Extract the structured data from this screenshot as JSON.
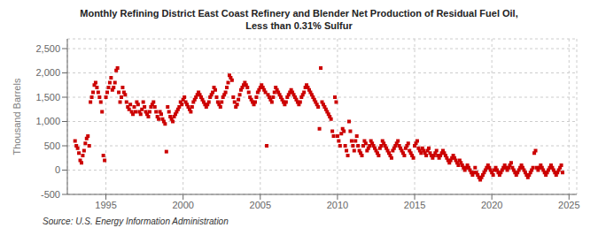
{
  "chart_data": {
    "type": "scatter",
    "title": "Monthly Refining District East Coast Refinery and Blender Net Production of Residual Fuel Oil,\nLess than 0.31% Sulfur",
    "ylabel": "Thousand Barrels",
    "annotations": [
      "Source: U.S. Energy Information Administration"
    ],
    "color": "#CC0000",
    "marker": "square",
    "grid": true,
    "xlim": [
      1992.5,
      2025.5
    ],
    "xticks": [
      1995,
      2000,
      2005,
      2010,
      2015,
      2020,
      2025
    ],
    "ylim": [
      -500,
      2700
    ],
    "yticks": [
      -500,
      0,
      500,
      {
        "value": 1000,
        "label": "1,000"
      },
      {
        "value": 1500,
        "label": "1,500"
      },
      {
        "value": 2000,
        "label": "2,000"
      },
      {
        "value": 2500,
        "label": "2,500"
      }
    ],
    "x": [
      1993.0,
      1993.083,
      1993.167,
      1993.25,
      1993.333,
      1993.417,
      1993.5,
      1993.583,
      1993.667,
      1993.75,
      1993.833,
      1993.917,
      1994.0,
      1994.083,
      1994.167,
      1994.25,
      1994.333,
      1994.417,
      1994.5,
      1994.583,
      1994.667,
      1994.75,
      1994.833,
      1994.917,
      1995.0,
      1995.083,
      1995.167,
      1995.25,
      1995.333,
      1995.417,
      1995.5,
      1995.583,
      1995.667,
      1995.75,
      1995.833,
      1995.917,
      1996.0,
      1996.083,
      1996.167,
      1996.25,
      1996.333,
      1996.417,
      1996.5,
      1996.583,
      1996.667,
      1996.75,
      1996.833,
      1996.917,
      1997.0,
      1997.083,
      1997.167,
      1997.25,
      1997.333,
      1997.417,
      1997.5,
      1997.583,
      1997.667,
      1997.75,
      1997.833,
      1997.917,
      1998.0,
      1998.083,
      1998.167,
      1998.25,
      1998.333,
      1998.417,
      1998.5,
      1998.583,
      1998.667,
      1998.75,
      1998.833,
      1998.917,
      1999.0,
      1999.083,
      1999.167,
      1999.25,
      1999.333,
      1999.417,
      1999.5,
      1999.583,
      1999.667,
      1999.75,
      1999.833,
      1999.917,
      2000.0,
      2000.083,
      2000.167,
      2000.25,
      2000.333,
      2000.417,
      2000.5,
      2000.583,
      2000.667,
      2000.75,
      2000.833,
      2000.917,
      2001.0,
      2001.083,
      2001.167,
      2001.25,
      2001.333,
      2001.417,
      2001.5,
      2001.583,
      2001.667,
      2001.75,
      2001.833,
      2001.917,
      2002.0,
      2002.083,
      2002.167,
      2002.25,
      2002.333,
      2002.417,
      2002.5,
      2002.583,
      2002.667,
      2002.75,
      2002.833,
      2002.917,
      2003.0,
      2003.083,
      2003.167,
      2003.25,
      2003.333,
      2003.417,
      2003.5,
      2003.583,
      2003.667,
      2003.75,
      2003.833,
      2003.917,
      2004.0,
      2004.083,
      2004.167,
      2004.25,
      2004.333,
      2004.417,
      2004.5,
      2004.583,
      2004.667,
      2004.75,
      2004.833,
      2004.917,
      2005.0,
      2005.083,
      2005.167,
      2005.25,
      2005.333,
      2005.417,
      2005.5,
      2005.583,
      2005.667,
      2005.75,
      2005.833,
      2005.917,
      2006.0,
      2006.083,
      2006.167,
      2006.25,
      2006.333,
      2006.417,
      2006.5,
      2006.583,
      2006.667,
      2006.75,
      2006.833,
      2006.917,
      2007.0,
      2007.083,
      2007.167,
      2007.25,
      2007.333,
      2007.417,
      2007.5,
      2007.583,
      2007.667,
      2007.75,
      2007.833,
      2007.917,
      2008.0,
      2008.083,
      2008.167,
      2008.25,
      2008.333,
      2008.417,
      2008.5,
      2008.583,
      2008.667,
      2008.75,
      2008.833,
      2008.917,
      2009.0,
      2009.083,
      2009.167,
      2009.25,
      2009.333,
      2009.417,
      2009.5,
      2009.583,
      2009.667,
      2009.75,
      2009.833,
      2009.917,
      2010.0,
      2010.083,
      2010.167,
      2010.25,
      2010.333,
      2010.417,
      2010.5,
      2010.583,
      2010.667,
      2010.75,
      2010.833,
      2010.917,
      2011.0,
      2011.083,
      2011.167,
      2011.25,
      2011.333,
      2011.417,
      2011.5,
      2011.583,
      2011.667,
      2011.75,
      2011.833,
      2011.917,
      2012.0,
      2012.083,
      2012.167,
      2012.25,
      2012.333,
      2012.417,
      2012.5,
      2012.583,
      2012.667,
      2012.75,
      2012.833,
      2012.917,
      2013.0,
      2013.083,
      2013.167,
      2013.25,
      2013.333,
      2013.417,
      2013.5,
      2013.583,
      2013.667,
      2013.75,
      2013.833,
      2013.917,
      2014.0,
      2014.083,
      2014.167,
      2014.25,
      2014.333,
      2014.417,
      2014.5,
      2014.583,
      2014.667,
      2014.75,
      2014.833,
      2014.917,
      2015.0,
      2015.083,
      2015.167,
      2015.25,
      2015.333,
      2015.417,
      2015.5,
      2015.583,
      2015.667,
      2015.75,
      2015.833,
      2015.917,
      2016.0,
      2016.083,
      2016.167,
      2016.25,
      2016.333,
      2016.417,
      2016.5,
      2016.583,
      2016.667,
      2016.75,
      2016.833,
      2016.917,
      2017.0,
      2017.083,
      2017.167,
      2017.25,
      2017.333,
      2017.417,
      2017.5,
      2017.583,
      2017.667,
      2017.75,
      2017.833,
      2017.917,
      2018.0,
      2018.083,
      2018.167,
      2018.25,
      2018.333,
      2018.417,
      2018.5,
      2018.583,
      2018.667,
      2018.75,
      2018.833,
      2018.917,
      2019.0,
      2019.083,
      2019.167,
      2019.25,
      2019.333,
      2019.417,
      2019.5,
      2019.583,
      2019.667,
      2019.75,
      2019.833,
      2019.917,
      2020.0,
      2020.083,
      2020.167,
      2020.25,
      2020.333,
      2020.417,
      2020.5,
      2020.583,
      2020.667,
      2020.75,
      2020.833,
      2020.917,
      2021.0,
      2021.083,
      2021.167,
      2021.25,
      2021.333,
      2021.417,
      2021.5,
      2021.583,
      2021.667,
      2021.75,
      2021.833,
      2021.917,
      2022.0,
      2022.083,
      2022.167,
      2022.25,
      2022.333,
      2022.417,
      2022.5,
      2022.583,
      2022.667,
      2022.75,
      2022.833,
      2022.917,
      2023.0,
      2023.083,
      2023.167,
      2023.25,
      2023.333,
      2023.417,
      2023.5,
      2023.583,
      2023.667,
      2023.75,
      2023.833,
      2023.917,
      2024.0,
      2024.083,
      2024.167,
      2024.25,
      2024.333,
      2024.417,
      2024.5,
      2024.583
    ],
    "values": [
      600,
      500,
      450,
      350,
      200,
      150,
      300,
      400,
      550,
      650,
      700,
      500,
      1400,
      1500,
      1600,
      1750,
      1800,
      1700,
      1600,
      1500,
      1400,
      1200,
      300,
      200,
      1500,
      1600,
      1700,
      1800,
      1900,
      1650,
      1700,
      1800,
      2050,
      2100,
      1600,
      1400,
      1500,
      1700,
      1600,
      1550,
      1400,
      1300,
      1250,
      1350,
      1200,
      1150,
      1300,
      1200,
      1400,
      1350,
      1200,
      1150,
      1250,
      1400,
      1300,
      1200,
      1150,
      1100,
      1200,
      1300,
      1350,
      1400,
      1300,
      1200,
      1100,
      1050,
      1200,
      1150,
      1050,
      1000,
      950,
      380,
      1300,
      1200,
      1100,
      1050,
      1000,
      1100,
      1150,
      1200,
      1250,
      1300,
      1400,
      1350,
      1450,
      1500,
      1400,
      1350,
      1300,
      1250,
      1200,
      1300,
      1400,
      1450,
      1500,
      1550,
      1600,
      1550,
      1500,
      1450,
      1400,
      1350,
      1300,
      1350,
      1400,
      1500,
      1550,
      1600,
      1700,
      1650,
      1500,
      1400,
      1350,
      1300,
      1400,
      1500,
      1550,
      1600,
      1700,
      1800,
      1950,
      1900,
      1850,
      1500,
      1400,
      1300,
      1350,
      1450,
      1550,
      1650,
      1700,
      1750,
      1800,
      1750,
      1700,
      1600,
      1500,
      1450,
      1400,
      1350,
      1400,
      1500,
      1600,
      1650,
      1700,
      1750,
      1700,
      1650,
      1600,
      500,
      1550,
      1500,
      1450,
      1400,
      1500,
      1600,
      1700,
      1650,
      1600,
      1550,
      1500,
      1450,
      1400,
      1350,
      1400,
      1500,
      1550,
      1600,
      1650,
      1600,
      1550,
      1500,
      1450,
      1400,
      1350,
      1400,
      1500,
      1550,
      1600,
      1700,
      1750,
      1700,
      1650,
      1600,
      1550,
      1500,
      1450,
      1400,
      1350,
      1300,
      850,
      2100,
      1400,
      1350,
      1300,
      1250,
      1200,
      1150,
      1100,
      1050,
      800,
      700,
      1500,
      1400,
      700,
      600,
      500,
      750,
      850,
      800,
      500,
      400,
      300,
      1000,
      800,
      600,
      500,
      400,
      600,
      700,
      500,
      400,
      350,
      300,
      500,
      600,
      550,
      400,
      450,
      500,
      600,
      550,
      500,
      450,
      400,
      350,
      300,
      450,
      500,
      600,
      550,
      500,
      450,
      400,
      350,
      300,
      250,
      400,
      450,
      500,
      550,
      600,
      500,
      450,
      400,
      350,
      300,
      450,
      500,
      550,
      400,
      350,
      300,
      250,
      500,
      550,
      600,
      450,
      400,
      350,
      450,
      400,
      350,
      300,
      400,
      450,
      350,
      300,
      250,
      300,
      350,
      400,
      300,
      250,
      300,
      350,
      400,
      350,
      300,
      250,
      200,
      150,
      200,
      250,
      300,
      250,
      200,
      150,
      100,
      200,
      150,
      100,
      50,
      0,
      50,
      100,
      50,
      0,
      -50,
      -100,
      -50,
      50,
      -50,
      -100,
      -150,
      -200,
      -150,
      -100,
      -50,
      0,
      50,
      100,
      50,
      0,
      -50,
      -100,
      0,
      50,
      0,
      -50,
      -100,
      -50,
      0,
      50,
      100,
      50,
      0,
      50,
      100,
      150,
      50,
      0,
      -50,
      -100,
      -50,
      0,
      50,
      100,
      50,
      0,
      -50,
      -100,
      -150,
      -100,
      -50,
      0,
      50,
      350,
      400,
      50,
      0,
      50,
      100,
      50,
      0,
      -50,
      -100,
      -50,
      0,
      50,
      100,
      50,
      0,
      -50,
      -100,
      -50,
      0,
      50,
      100,
      -50
    ]
  }
}
